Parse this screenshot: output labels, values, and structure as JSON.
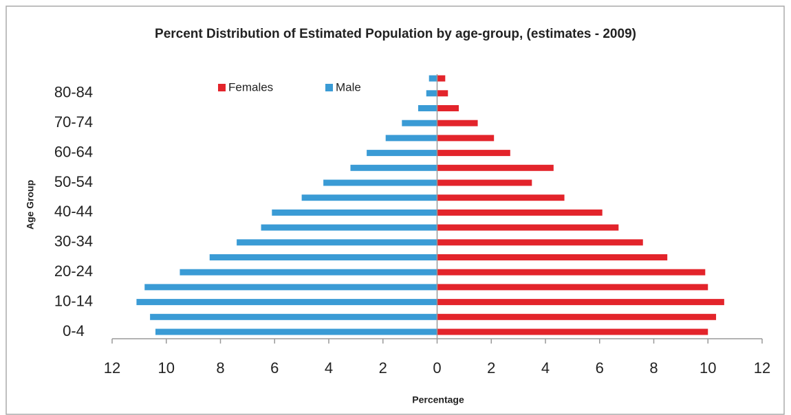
{
  "chart_data": {
    "type": "pyramid",
    "title": "Percent Distribution of Estimated Population by age-group, (estimates - 2009)",
    "x_label": "Percentage",
    "y_label": "Age Group",
    "categories": [
      "0-4",
      null,
      "10-14",
      null,
      "20-24",
      null,
      "30-34",
      null,
      "40-44",
      null,
      "50-54",
      null,
      "60-64",
      null,
      "70-74",
      null,
      "80-84",
      null
    ],
    "series": [
      {
        "name": "Females",
        "color": "#e3242b",
        "values": [
          10.0,
          10.3,
          10.6,
          10.0,
          9.9,
          8.5,
          7.6,
          6.7,
          6.1,
          4.7,
          3.5,
          4.3,
          2.7,
          2.1,
          1.5,
          0.8,
          0.4,
          0.3
        ]
      },
      {
        "name": "Male",
        "color": "#3a9bd5",
        "values": [
          -10.4,
          -10.6,
          -11.1,
          -10.8,
          -9.5,
          -8.4,
          -7.4,
          -6.5,
          -6.1,
          -5.0,
          -4.2,
          -3.2,
          -2.6,
          -1.9,
          -1.3,
          -0.7,
          -0.4,
          -0.3
        ]
      }
    ],
    "xlim": [
      -12,
      12
    ],
    "xticks": [
      {
        "value": -12,
        "label": "12"
      },
      {
        "value": -10,
        "label": "10"
      },
      {
        "value": -8,
        "label": "8"
      },
      {
        "value": -6,
        "label": "6"
      },
      {
        "value": -4,
        "label": "4"
      },
      {
        "value": -2,
        "label": "2"
      },
      0,
      2,
      4,
      6,
      8,
      10,
      12
    ],
    "legend": "top-left"
  }
}
